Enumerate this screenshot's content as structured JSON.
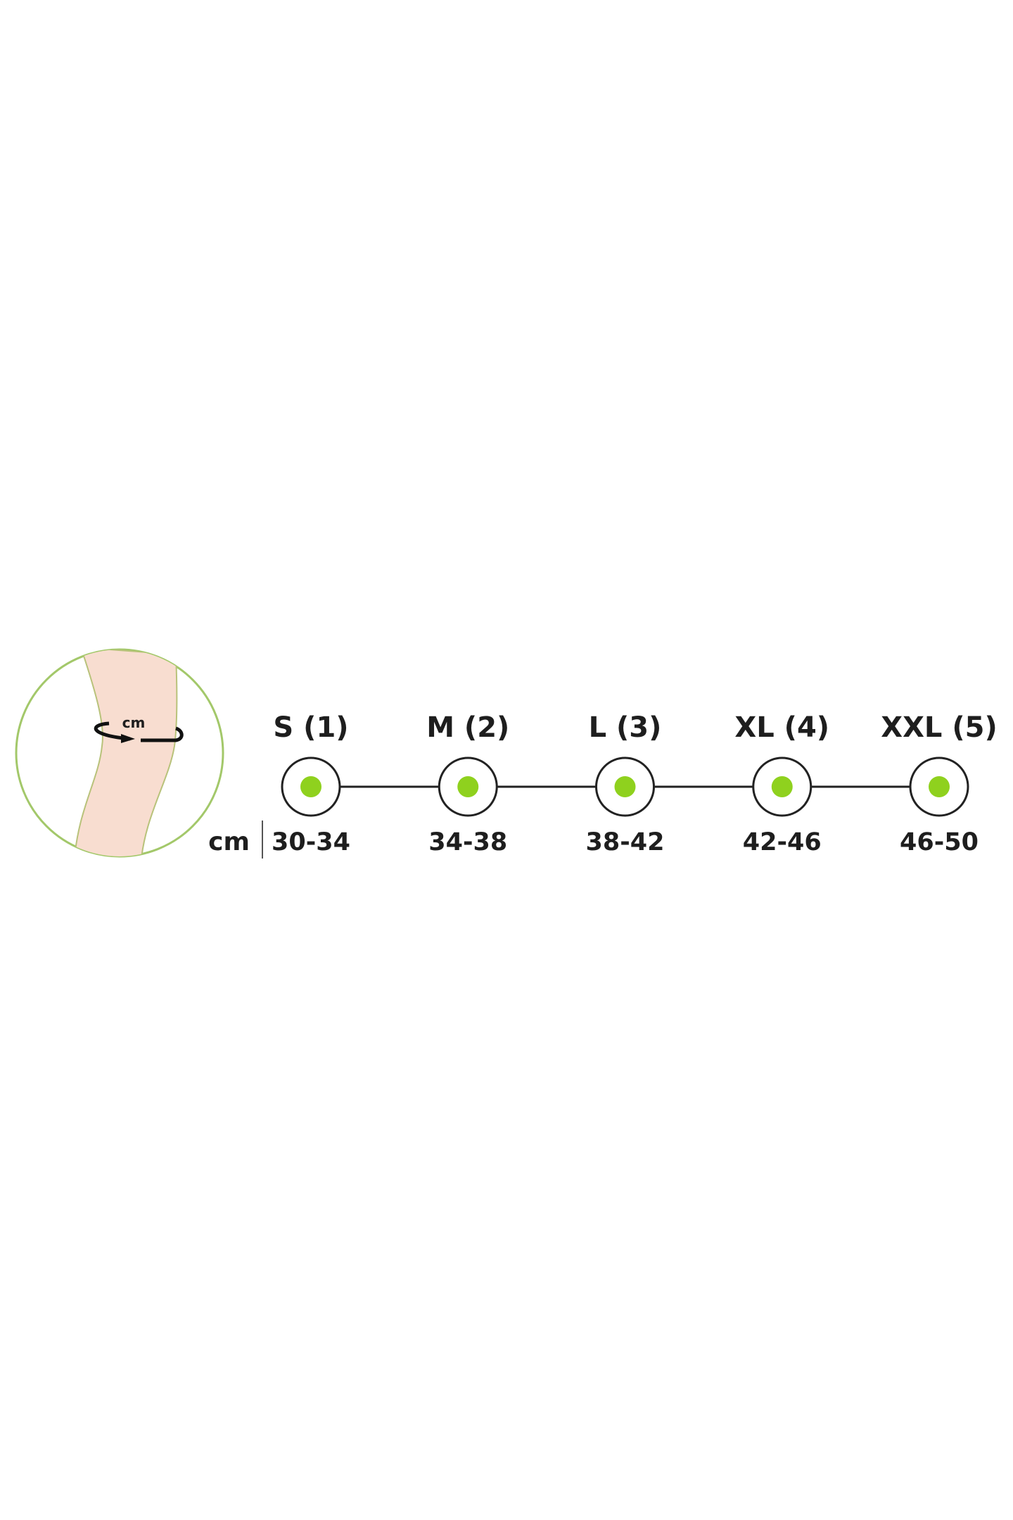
{
  "illustration": {
    "measure_unit_label": "cm"
  },
  "unit_label": "cm",
  "colors": {
    "accent": "#8fd11e",
    "ring": "#a3c86a",
    "skin": "#f8ddd0",
    "text": "#1e1e1e"
  },
  "sizes": [
    {
      "label": "S (1)",
      "range": "30-34"
    },
    {
      "label": "M (2)",
      "range": "34-38"
    },
    {
      "label": "L (3)",
      "range": "38-42"
    },
    {
      "label": "XL (4)",
      "range": "42-46"
    },
    {
      "label": "XXL (5)",
      "range": "46-50"
    }
  ]
}
